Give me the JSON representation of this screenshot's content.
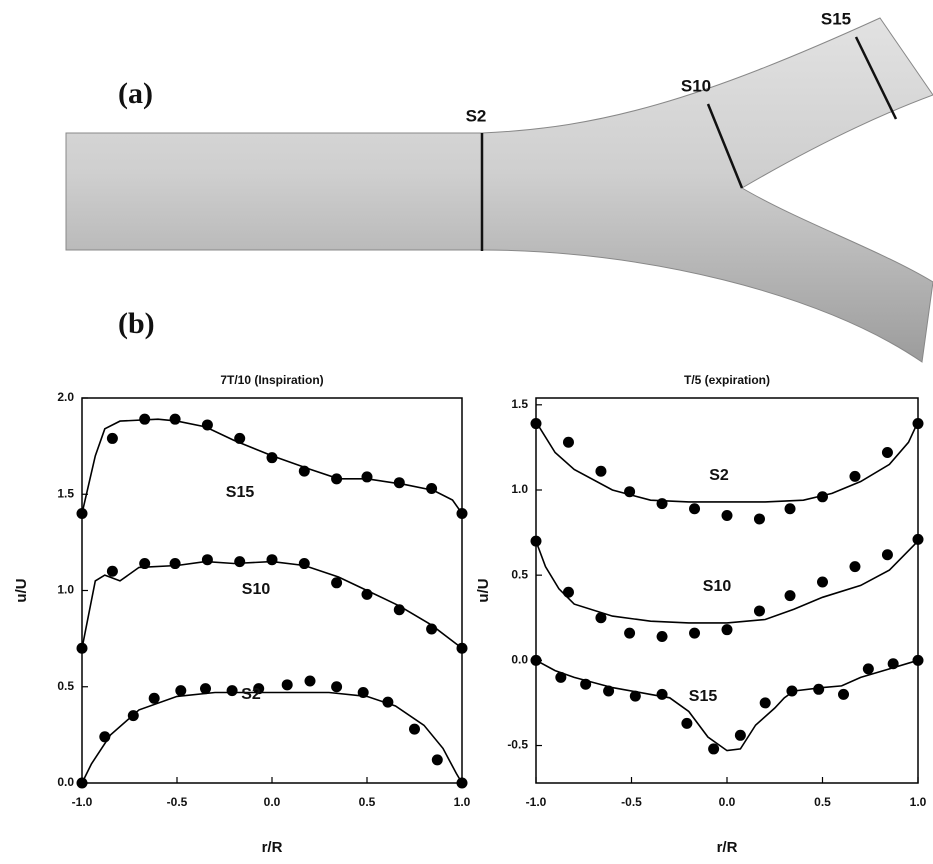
{
  "figure": {
    "panel_a": "(a)",
    "panel_b": "(b)",
    "sections": [
      "S2",
      "S10",
      "S15"
    ]
  },
  "chart_data": [
    {
      "type": "line",
      "title": "7T/10 (Inspiration)",
      "x_label": "r/R",
      "y_label": "u/U",
      "xlim": [
        -1,
        1
      ],
      "ylim": [
        0,
        2
      ],
      "xticks": [
        {
          "value": -1,
          "label": "-1.0"
        },
        -0.5,
        {
          "value": 0,
          "label": "0.0"
        },
        0.5,
        {
          "value": 1,
          "label": "1.0"
        }
      ],
      "yticks": [
        {
          "value": 0,
          "label": "0.0"
        },
        0.5,
        {
          "value": 1,
          "label": "1.0"
        },
        1.5,
        {
          "value": 2,
          "label": "2.0"
        }
      ],
      "series": [
        {
          "name": "S15",
          "color": "#000000",
          "line": {
            "x": [
              -1,
              -0.93,
              -0.88,
              -0.8,
              -0.6,
              -0.5,
              -0.35,
              -0.2,
              0,
              0.2,
              0.35,
              0.5,
              0.7,
              0.85,
              0.95,
              1
            ],
            "values": [
              1.4,
              1.7,
              1.84,
              1.88,
              1.89,
              1.88,
              1.85,
              1.78,
              1.7,
              1.63,
              1.58,
              1.58,
              1.55,
              1.52,
              1.47,
              1.4
            ]
          },
          "markers": {
            "x": [
              -1,
              -0.84,
              -0.67,
              -0.51,
              -0.34,
              -0.17,
              0,
              0.17,
              0.34,
              0.5,
              0.67,
              0.84,
              1
            ],
            "values": [
              1.4,
              1.79,
              1.89,
              1.89,
              1.86,
              1.79,
              1.69,
              1.62,
              1.58,
              1.59,
              1.56,
              1.53,
              1.4
            ]
          }
        },
        {
          "name": "S10",
          "color": "#000000",
          "line": {
            "x": [
              -1,
              -0.93,
              -0.88,
              -0.8,
              -0.7,
              -0.5,
              -0.35,
              -0.2,
              0,
              0.17,
              0.35,
              0.5,
              0.67,
              0.84,
              1
            ],
            "values": [
              0.7,
              1.05,
              1.08,
              1.05,
              1.12,
              1.13,
              1.15,
              1.14,
              1.15,
              1.13,
              1.07,
              1.0,
              0.92,
              0.82,
              0.7
            ]
          },
          "markers": {
            "x": [
              -1,
              -0.84,
              -0.67,
              -0.51,
              -0.34,
              -0.17,
              0,
              0.17,
              0.34,
              0.5,
              0.67,
              0.84,
              1
            ],
            "values": [
              0.7,
              1.1,
              1.14,
              1.14,
              1.16,
              1.15,
              1.16,
              1.14,
              1.04,
              0.98,
              0.9,
              0.8,
              0.7
            ]
          }
        },
        {
          "name": "S2",
          "color": "#000000",
          "line": {
            "x": [
              -1,
              -0.95,
              -0.85,
              -0.7,
              -0.5,
              -0.3,
              0,
              0.3,
              0.5,
              0.65,
              0.8,
              0.9,
              0.97,
              1
            ],
            "values": [
              0,
              0.1,
              0.25,
              0.38,
              0.45,
              0.47,
              0.47,
              0.47,
              0.45,
              0.4,
              0.3,
              0.18,
              0.05,
              0
            ]
          },
          "markers": {
            "x": [
              -1,
              -0.88,
              -0.73,
              -0.62,
              -0.48,
              -0.35,
              -0.21,
              -0.07,
              0.08,
              0.2,
              0.34,
              0.48,
              0.61,
              0.75,
              0.87,
              1
            ],
            "values": [
              0,
              0.24,
              0.35,
              0.44,
              0.48,
              0.49,
              0.48,
              0.49,
              0.51,
              0.53,
              0.5,
              0.47,
              0.42,
              0.28,
              0.12,
              0
            ]
          }
        }
      ]
    },
    {
      "type": "line",
      "title": "T/5 (expiration)",
      "x_label": "r/R",
      "y_label": "u/U",
      "xlim": [
        -1,
        1
      ],
      "ylim": [
        -0.72,
        1.54
      ],
      "xticks": [
        {
          "value": -1,
          "label": "-1.0"
        },
        -0.5,
        {
          "value": 0,
          "label": "0.0"
        },
        0.5,
        {
          "value": 1,
          "label": "1.0"
        }
      ],
      "yticks": [
        -0.5,
        {
          "value": 0,
          "label": "0.0"
        },
        0.5,
        {
          "value": 1,
          "label": "1.0"
        },
        1.5
      ],
      "series": [
        {
          "name": "S2",
          "color": "#000000",
          "line": {
            "x": [
              -1,
              -0.9,
              -0.8,
              -0.6,
              -0.4,
              -0.2,
              0,
              0.2,
              0.4,
              0.55,
              0.7,
              0.85,
              0.95,
              1
            ],
            "values": [
              1.4,
              1.22,
              1.12,
              1.0,
              0.94,
              0.93,
              0.93,
              0.93,
              0.94,
              0.98,
              1.05,
              1.15,
              1.28,
              1.4
            ]
          },
          "markers": {
            "x": [
              -1,
              -0.83,
              -0.66,
              -0.51,
              -0.34,
              -0.17,
              0,
              0.17,
              0.33,
              0.5,
              0.67,
              0.84,
              1
            ],
            "values": [
              1.39,
              1.28,
              1.11,
              0.99,
              0.92,
              0.89,
              0.85,
              0.83,
              0.89,
              0.96,
              1.08,
              1.22,
              1.39
            ]
          }
        },
        {
          "name": "S10",
          "color": "#000000",
          "line": {
            "x": [
              -1,
              -0.95,
              -0.88,
              -0.8,
              -0.6,
              -0.4,
              -0.2,
              0,
              0.2,
              0.35,
              0.5,
              0.7,
              0.85,
              1
            ],
            "values": [
              0.7,
              0.55,
              0.42,
              0.33,
              0.26,
              0.23,
              0.22,
              0.22,
              0.24,
              0.3,
              0.37,
              0.44,
              0.53,
              0.7
            ]
          },
          "markers": {
            "x": [
              -1,
              -0.83,
              -0.66,
              -0.51,
              -0.34,
              -0.17,
              0,
              0.17,
              0.33,
              0.5,
              0.67,
              0.84,
              1
            ],
            "values": [
              0.7,
              0.4,
              0.25,
              0.16,
              0.14,
              0.16,
              0.18,
              0.29,
              0.38,
              0.46,
              0.55,
              0.62,
              0.71
            ]
          }
        },
        {
          "name": "S15",
          "color": "#000000",
          "line": {
            "x": [
              -1,
              -0.9,
              -0.8,
              -0.6,
              -0.4,
              -0.3,
              -0.2,
              -0.1,
              0,
              0.07,
              0.15,
              0.25,
              0.3,
              0.35,
              0.5,
              0.6,
              0.7,
              0.85,
              1
            ],
            "values": [
              0,
              -0.06,
              -0.1,
              -0.16,
              -0.2,
              -0.22,
              -0.3,
              -0.45,
              -0.53,
              -0.52,
              -0.38,
              -0.28,
              -0.22,
              -0.18,
              -0.16,
              -0.15,
              -0.1,
              -0.05,
              0
            ]
          },
          "markers": {
            "x": [
              -1,
              -0.87,
              -0.74,
              -0.62,
              -0.48,
              -0.34,
              -0.21,
              -0.07,
              0.07,
              0.2,
              0.34,
              0.48,
              0.61,
              0.74,
              0.87,
              1
            ],
            "values": [
              0,
              -0.1,
              -0.14,
              -0.18,
              -0.21,
              -0.2,
              -0.37,
              -0.52,
              -0.44,
              -0.25,
              -0.18,
              -0.17,
              -0.2,
              -0.05,
              -0.02,
              0
            ]
          }
        }
      ]
    }
  ]
}
